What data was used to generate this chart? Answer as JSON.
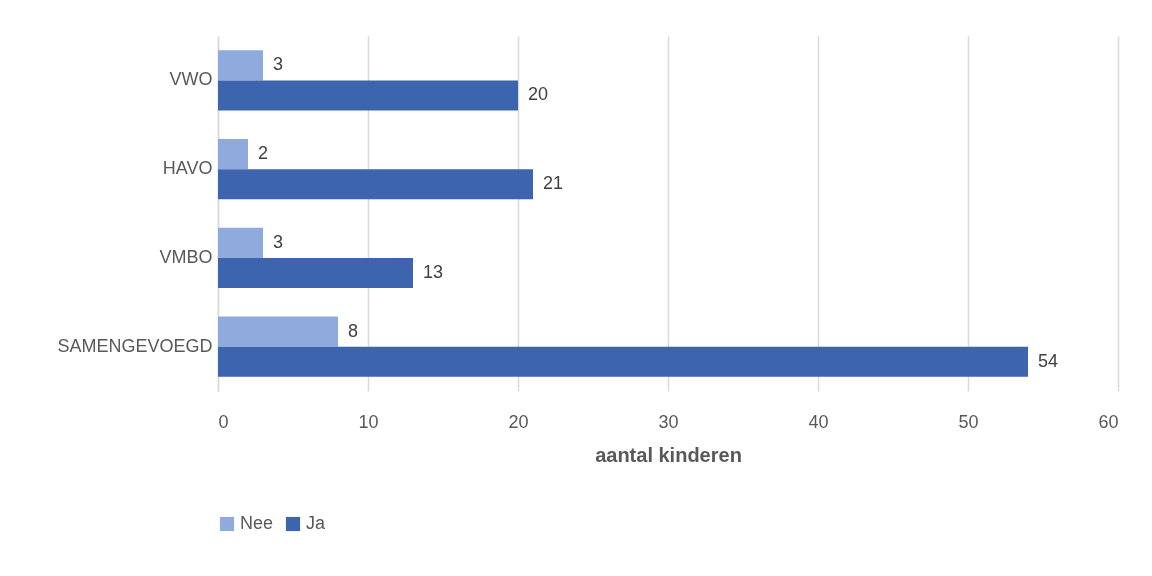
{
  "chart_data": {
    "type": "bar",
    "orientation": "horizontal",
    "xlabel": "aantal kinderen",
    "categories": [
      "VWO",
      "HAVO",
      "VMBO",
      "SAMENGEVOEGD"
    ],
    "series": [
      {
        "name": "Nee",
        "color": "#8faadc",
        "values": [
          3,
          2,
          3,
          8
        ]
      },
      {
        "name": "Ja",
        "color": "#3d64ae",
        "values": [
          20,
          21,
          13,
          54
        ]
      }
    ],
    "xlim": [
      0,
      60
    ],
    "xticks": [
      0,
      10,
      20,
      30,
      40,
      50,
      60
    ],
    "grid": "x",
    "legend": "bottom",
    "data_labels": true
  }
}
